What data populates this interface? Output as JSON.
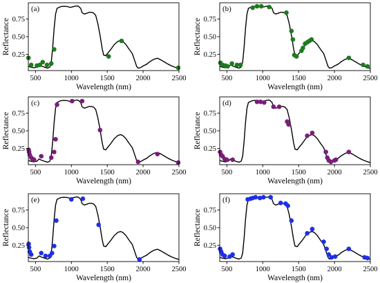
{
  "chart_data": [
    {
      "type": "line+scatter",
      "panel_label": "(a)",
      "xlabel": "Wavelength (nm)",
      "ylabel": "Reflectance",
      "xlim": [
        400,
        2500
      ],
      "ylim": [
        0.02,
        0.98
      ],
      "xticks": [
        500,
        1000,
        1500,
        2000,
        2500
      ],
      "yticks": [
        0.25,
        0.5,
        0.75
      ],
      "xtick_labels": [
        "500",
        "1000",
        "1500",
        "2000",
        "2500"
      ],
      "ytick_labels": [
        "0.25",
        "0.50",
        "0.75"
      ],
      "point_color": "#1e7a1e",
      "points": [
        [
          402,
          0.2
        ],
        [
          440,
          0.1
        ],
        [
          520,
          0.09
        ],
        [
          560,
          0.1
        ],
        [
          600,
          0.14
        ],
        [
          660,
          0.1
        ],
        [
          720,
          0.12
        ],
        [
          760,
          0.32
        ],
        [
          1520,
          0.22
        ],
        [
          1700,
          0.44
        ],
        [
          2490,
          0.06
        ]
      ]
    },
    {
      "type": "line+scatter",
      "panel_label": "(b)",
      "xlabel": "Wavelength (nm)",
      "ylabel": "Reflectance",
      "xlim": [
        400,
        2500
      ],
      "ylim": [
        0.02,
        0.98
      ],
      "xticks": [
        500,
        1000,
        1500,
        2000,
        2500
      ],
      "yticks": [
        0.25,
        0.5,
        0.75
      ],
      "xtick_labels": [
        "500",
        "1000",
        "1500",
        "2000",
        "2500"
      ],
      "ytick_labels": [
        "0.25",
        "0.50",
        "0.75"
      ],
      "point_color": "#1e7a1e",
      "points": [
        [
          410,
          0.13
        ],
        [
          440,
          0.1
        ],
        [
          480,
          0.09
        ],
        [
          510,
          0.08
        ],
        [
          570,
          0.12
        ],
        [
          640,
          0.1
        ],
        [
          690,
          0.1
        ],
        [
          860,
          0.91
        ],
        [
          920,
          0.93
        ],
        [
          980,
          0.93
        ],
        [
          1090,
          0.92
        ],
        [
          1330,
          0.84
        ],
        [
          1400,
          0.58
        ],
        [
          1420,
          0.46
        ],
        [
          1440,
          0.24
        ],
        [
          1470,
          0.22
        ],
        [
          1540,
          0.3
        ],
        [
          1560,
          0.34
        ],
        [
          1590,
          0.4
        ],
        [
          1620,
          0.42
        ],
        [
          1650,
          0.44
        ],
        [
          1680,
          0.46
        ],
        [
          2200,
          0.2
        ],
        [
          2400,
          0.1
        ],
        [
          2460,
          0.08
        ]
      ]
    },
    {
      "type": "line+scatter",
      "panel_label": "(c)",
      "xlabel": "Wavelength (nm)",
      "ylabel": "Reflectance",
      "xlim": [
        400,
        2500
      ],
      "ylim": [
        0.02,
        0.98
      ],
      "xticks": [
        500,
        1000,
        1500,
        2000,
        2500
      ],
      "yticks": [
        0.25,
        0.5,
        0.75
      ],
      "xtick_labels": [
        "500",
        "1000",
        "1500",
        "2000",
        "2500"
      ],
      "ytick_labels": [
        "0.25",
        "0.50",
        "0.75"
      ],
      "point_color": "#7a1e7a",
      "points": [
        [
          405,
          0.23
        ],
        [
          410,
          0.2
        ],
        [
          420,
          0.16
        ],
        [
          440,
          0.12
        ],
        [
          460,
          0.1
        ],
        [
          480,
          0.09
        ],
        [
          580,
          0.14
        ],
        [
          720,
          0.12
        ],
        [
          760,
          0.2
        ],
        [
          780,
          0.38
        ],
        [
          800,
          0.87
        ],
        [
          1010,
          0.92
        ],
        [
          1150,
          0.92
        ],
        [
          1400,
          0.51
        ],
        [
          1930,
          0.06
        ],
        [
          2200,
          0.17
        ],
        [
          2490,
          0.05
        ]
      ]
    },
    {
      "type": "line+scatter",
      "panel_label": "(d)",
      "xlabel": "Wavelength (nm)",
      "ylabel": "Reflectance",
      "xlim": [
        400,
        2500
      ],
      "ylim": [
        0.02,
        0.98
      ],
      "xticks": [
        500,
        1000,
        1500,
        2000,
        2500
      ],
      "yticks": [
        0.25,
        0.5,
        0.75
      ],
      "xtick_labels": [
        "500",
        "1000",
        "1500",
        "2000",
        "2500"
      ],
      "ytick_labels": [
        "0.25",
        "0.50",
        "0.75"
      ],
      "point_color": "#7a1e7a",
      "points": [
        [
          405,
          0.2
        ],
        [
          420,
          0.16
        ],
        [
          440,
          0.14
        ],
        [
          470,
          0.1
        ],
        [
          500,
          0.09
        ],
        [
          580,
          0.09
        ],
        [
          920,
          0.91
        ],
        [
          970,
          0.91
        ],
        [
          1020,
          0.9
        ],
        [
          1150,
          0.84
        ],
        [
          1230,
          0.84
        ],
        [
          1340,
          0.63
        ],
        [
          1360,
          0.59
        ],
        [
          1620,
          0.43
        ],
        [
          1690,
          0.47
        ],
        [
          1880,
          0.2
        ],
        [
          1900,
          0.12
        ],
        [
          1920,
          0.08
        ],
        [
          1950,
          0.06
        ],
        [
          2000,
          0.08
        ],
        [
          2020,
          0.09
        ],
        [
          2200,
          0.2
        ]
      ]
    },
    {
      "type": "line+scatter",
      "panel_label": "(e)",
      "xlabel": "Wavelength (nm)",
      "ylabel": "Reflectance",
      "xlim": [
        400,
        2500
      ],
      "ylim": [
        0.02,
        0.98
      ],
      "xticks": [
        500,
        1000,
        1500,
        2000,
        2500
      ],
      "yticks": [
        0.25,
        0.5,
        0.75
      ],
      "xtick_labels": [
        "500",
        "1000",
        "1500",
        "2000",
        "2500"
      ],
      "ytick_labels": [
        "0.25",
        "0.50",
        "0.75"
      ],
      "point_color": "#1f2fe6",
      "points": [
        [
          405,
          0.27
        ],
        [
          410,
          0.22
        ],
        [
          420,
          0.16
        ],
        [
          440,
          0.12
        ],
        [
          580,
          0.14
        ],
        [
          640,
          0.1
        ],
        [
          700,
          0.1
        ],
        [
          730,
          0.14
        ],
        [
          760,
          0.24
        ],
        [
          790,
          0.6
        ],
        [
          1000,
          0.9
        ],
        [
          1160,
          0.91
        ],
        [
          1380,
          0.54
        ],
        [
          1950,
          0.05
        ]
      ]
    },
    {
      "type": "line+scatter",
      "panel_label": "(f)",
      "xlabel": "Wavelength (nm)",
      "ylabel": "Reflectance",
      "xlim": [
        400,
        2500
      ],
      "ylim": [
        0.02,
        0.98
      ],
      "xticks": [
        500,
        1000,
        1500,
        2000,
        2500
      ],
      "yticks": [
        0.25,
        0.5,
        0.75
      ],
      "xtick_labels": [
        "500",
        "1000",
        "1500",
        "2000",
        "2500"
      ],
      "ytick_labels": [
        "0.25",
        "0.50",
        "0.75"
      ],
      "point_color": "#1f2fe6",
      "points": [
        [
          405,
          0.2
        ],
        [
          420,
          0.16
        ],
        [
          440,
          0.12
        ],
        [
          470,
          0.1
        ],
        [
          540,
          0.09
        ],
        [
          580,
          0.12
        ],
        [
          790,
          0.9
        ],
        [
          830,
          0.91
        ],
        [
          860,
          0.92
        ],
        [
          900,
          0.93
        ],
        [
          960,
          0.92
        ],
        [
          1010,
          0.93
        ],
        [
          1110,
          0.93
        ],
        [
          1250,
          0.85
        ],
        [
          1320,
          0.84
        ],
        [
          1350,
          0.81
        ],
        [
          1400,
          0.6
        ],
        [
          1620,
          0.42
        ],
        [
          1690,
          0.48
        ],
        [
          1850,
          0.3
        ],
        [
          1890,
          0.2
        ],
        [
          1920,
          0.12
        ],
        [
          1960,
          0.08
        ],
        [
          2010,
          0.09
        ],
        [
          2200,
          0.2
        ],
        [
          2420,
          0.08
        ],
        [
          2460,
          0.07
        ]
      ]
    }
  ]
}
